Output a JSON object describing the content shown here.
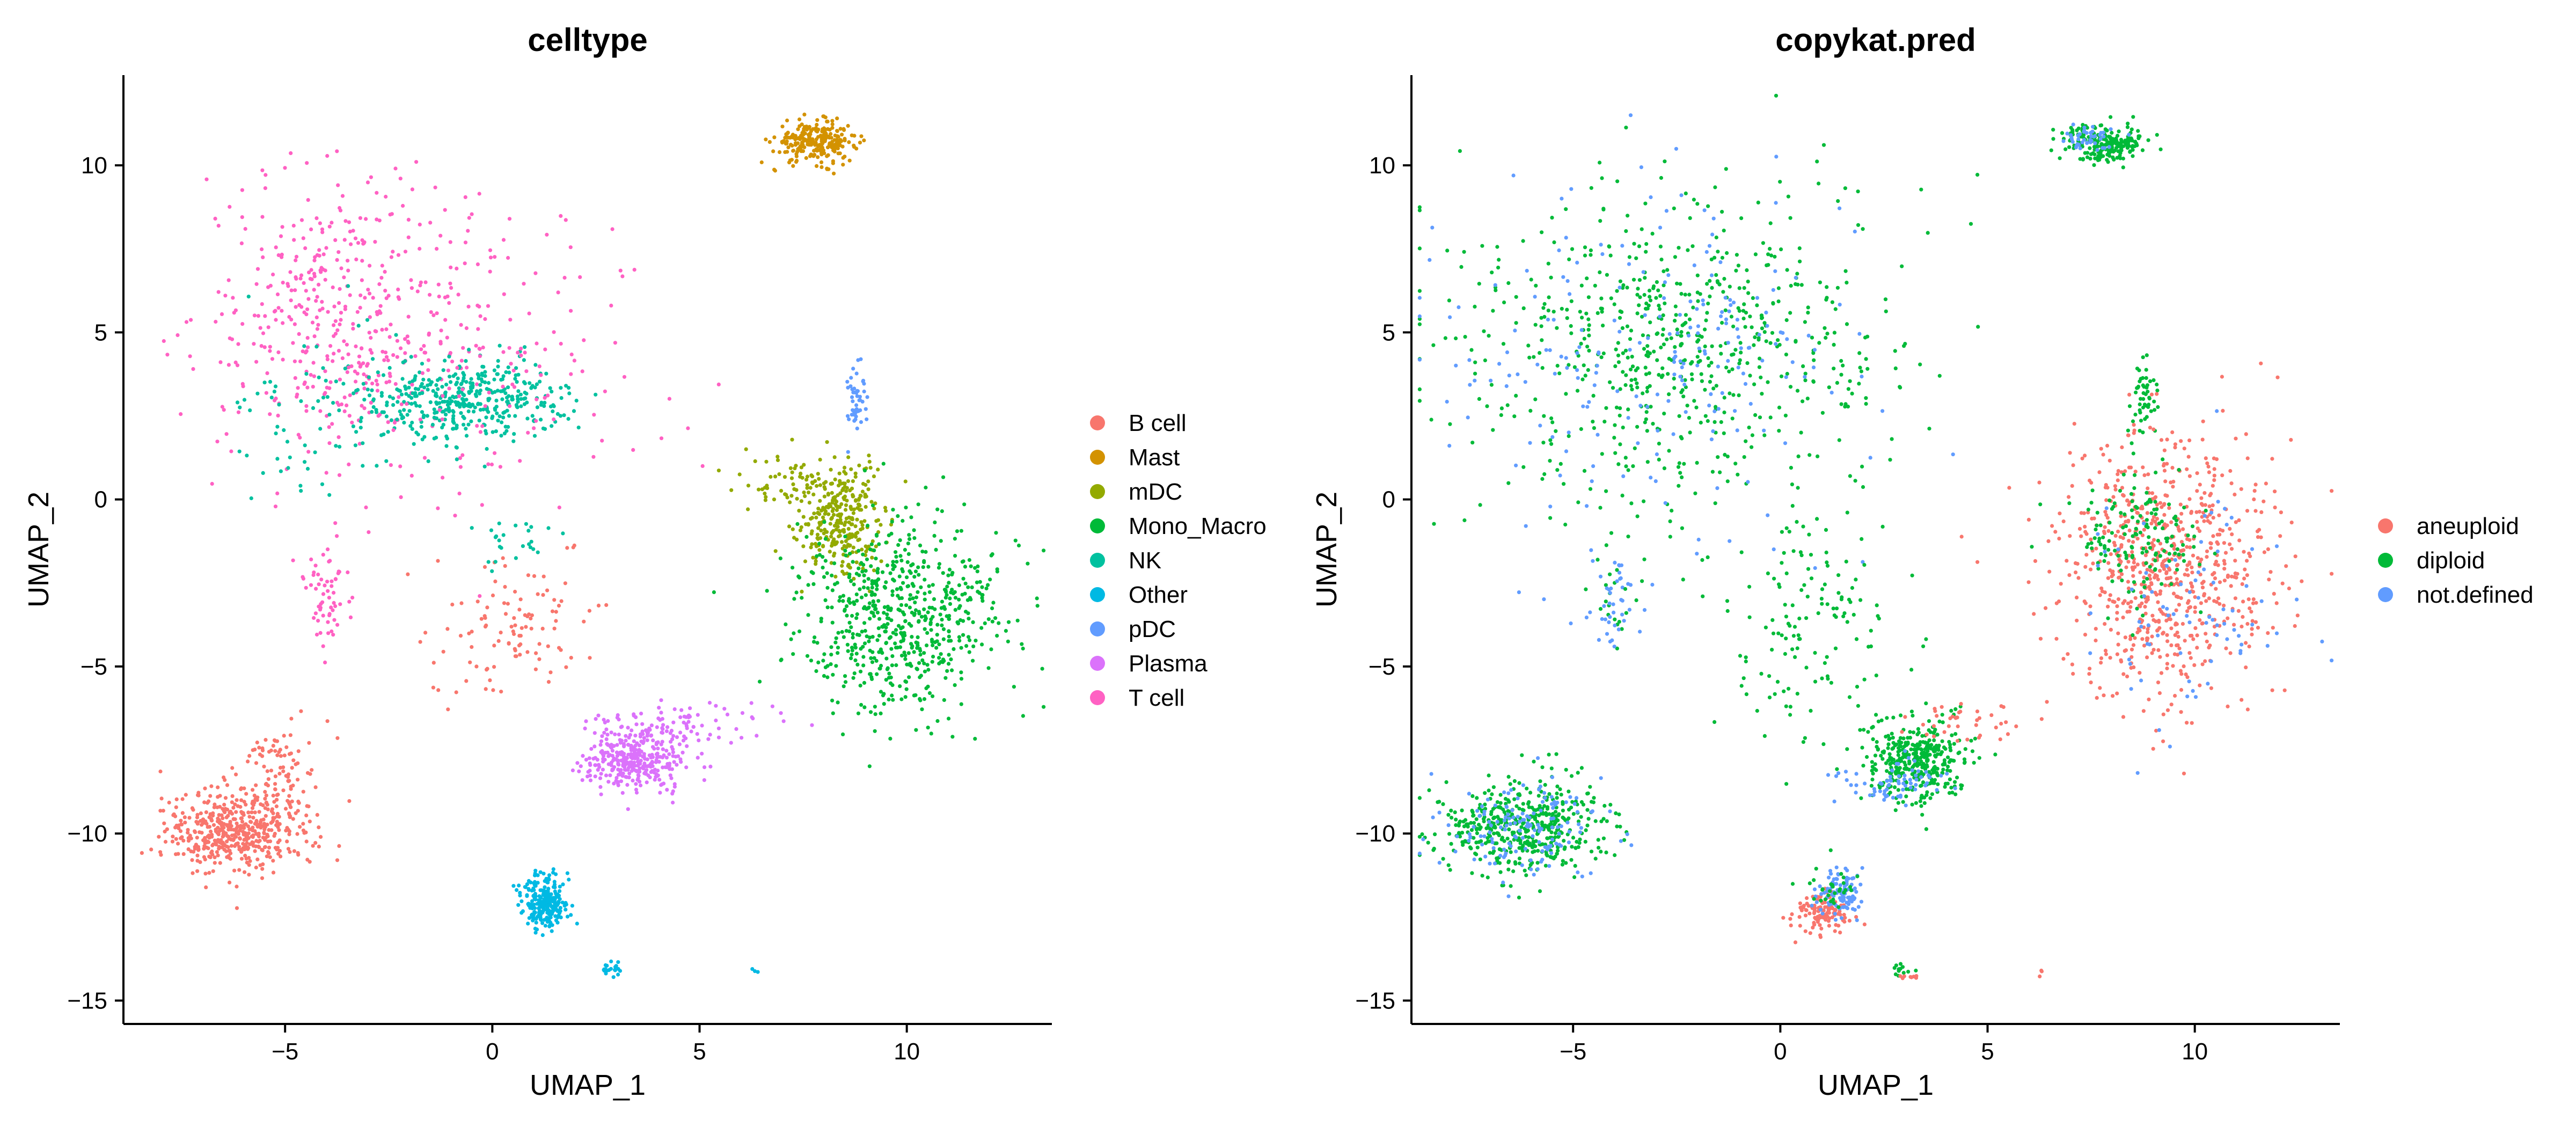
{
  "chart_data": [
    {
      "type": "scatter",
      "title": "celltype",
      "xlabel": "UMAP_1",
      "ylabel": "UMAP_2",
      "xlim": [
        -8.9,
        13.5
      ],
      "ylim": [
        -15.7,
        12.7
      ],
      "xticks": [
        -5,
        0,
        5,
        10
      ],
      "yticks": [
        -15,
        -10,
        -5,
        0,
        5,
        10
      ],
      "xtick_labels": [
        "−5",
        "0",
        "5",
        "10"
      ],
      "ytick_labels": [
        "−15",
        "−10",
        "−5",
        "0",
        "5",
        "10"
      ],
      "grid": false,
      "legend_position": "right",
      "legend": [
        "B cell",
        "Mast",
        "mDC",
        "Mono_Macro",
        "NK",
        "Other",
        "pDC",
        "Plasma",
        "T cell"
      ],
      "colors": {
        "B cell": "#F8766D",
        "Mast": "#D39200",
        "mDC": "#93AA00",
        "Mono_Macro": "#00BA38",
        "NK": "#00C19F",
        "Other": "#00B9E3",
        "pDC": "#619CFF",
        "Plasma": "#DB72FB",
        "T cell": "#FF61C3"
      },
      "clusters": [
        {
          "group": "Mast",
          "center": [
            7.8,
            10.7
          ],
          "spread": [
            0.5,
            0.3
          ],
          "n": 260
        },
        {
          "group": "T cell",
          "center": [
            -3.8,
            5.5
          ],
          "spread": [
            1.6,
            2.2
          ],
          "n": 380
        },
        {
          "group": "NK",
          "center": [
            -0.5,
            3.0
          ],
          "spread": [
            1.2,
            0.6
          ],
          "n": 420
        },
        {
          "group": "T cell",
          "center": [
            -1.0,
            4.5
          ],
          "spread": [
            2.5,
            2.3
          ],
          "n": 200
        },
        {
          "group": "NK",
          "center": [
            -4.0,
            2.8
          ],
          "spread": [
            1.3,
            1.4
          ],
          "n": 70
        },
        {
          "group": "T cell",
          "center": [
            -4.0,
            -3.0
          ],
          "spread": [
            0.3,
            0.7
          ],
          "n": 60
        },
        {
          "group": "pDC",
          "center": [
            8.8,
            3.0
          ],
          "spread": [
            0.15,
            0.6
          ],
          "n": 50
        },
        {
          "group": "mDC",
          "center": [
            8.4,
            -0.6
          ],
          "spread": [
            0.5,
            0.8
          ],
          "n": 300
        },
        {
          "group": "mDC",
          "center": [
            7.0,
            0.5
          ],
          "spread": [
            0.8,
            0.5
          ],
          "n": 60
        },
        {
          "group": "Mono_Macro",
          "center": [
            9.8,
            -3.5
          ],
          "spread": [
            1.2,
            1.4
          ],
          "n": 650
        },
        {
          "group": "Plasma",
          "center": [
            3.5,
            -7.8
          ],
          "spread": [
            0.6,
            0.5
          ],
          "n": 350
        },
        {
          "group": "Plasma",
          "center": [
            4.5,
            -6.7
          ],
          "spread": [
            1.1,
            0.3
          ],
          "n": 80
        },
        {
          "group": "B cell",
          "center": [
            -6.2,
            -9.9
          ],
          "spread": [
            0.9,
            0.6
          ],
          "n": 520
        },
        {
          "group": "B cell",
          "center": [
            -5.0,
            -7.8
          ],
          "spread": [
            0.5,
            0.7
          ],
          "n": 70
        },
        {
          "group": "B cell",
          "center": [
            0.6,
            -4.0
          ],
          "spread": [
            1.0,
            1.1
          ],
          "n": 110
        },
        {
          "group": "NK",
          "center": [
            0.5,
            -1.2
          ],
          "spread": [
            0.6,
            0.3
          ],
          "n": 25
        },
        {
          "group": "Other",
          "center": [
            1.3,
            -12.1
          ],
          "spread": [
            0.3,
            0.4
          ],
          "n": 240
        },
        {
          "group": "Other",
          "center": [
            2.9,
            -14.1
          ],
          "spread": [
            0.2,
            0.1
          ],
          "n": 20
        },
        {
          "group": "Other",
          "center": [
            6.3,
            -14.1
          ],
          "spread": [
            0.05,
            0.05
          ],
          "n": 3
        }
      ]
    },
    {
      "type": "scatter",
      "title": "copykat.pred",
      "xlabel": "UMAP_1",
      "ylabel": "UMAP_2",
      "xlim": [
        -8.9,
        13.5
      ],
      "ylim": [
        -15.7,
        12.7
      ],
      "xticks": [
        -5,
        0,
        5,
        10
      ],
      "yticks": [
        -15,
        -10,
        -5,
        0,
        5,
        10
      ],
      "xtick_labels": [
        "−5",
        "0",
        "5",
        "10"
      ],
      "ytick_labels": [
        "−15",
        "−10",
        "−5",
        "0",
        "5",
        "10"
      ],
      "grid": false,
      "legend_position": "right",
      "legend": [
        "aneuploid",
        "diploid",
        "not.defined"
      ],
      "colors": {
        "aneuploid": "#F8766D",
        "diploid": "#00BA38",
        "not.defined": "#619CFF"
      },
      "clusters": [
        {
          "group": "diploid",
          "center": [
            7.8,
            10.7
          ],
          "spread": [
            0.5,
            0.3
          ],
          "n": 220
        },
        {
          "group": "not.defined",
          "center": [
            7.4,
            10.8
          ],
          "spread": [
            0.3,
            0.2
          ],
          "n": 45
        },
        {
          "group": "diploid",
          "center": [
            -2.5,
            4.5
          ],
          "spread": [
            2.6,
            2.4
          ],
          "n": 700
        },
        {
          "group": "not.defined",
          "center": [
            -3.0,
            4.0
          ],
          "spread": [
            2.5,
            2.5
          ],
          "n": 220
        },
        {
          "group": "diploid",
          "center": [
            -4.0,
            -3.0
          ],
          "spread": [
            0.3,
            0.7
          ],
          "n": 20
        },
        {
          "group": "not.defined",
          "center": [
            -4.0,
            -3.0
          ],
          "spread": [
            0.3,
            0.7
          ],
          "n": 40
        },
        {
          "group": "diploid",
          "center": [
            8.8,
            3.0
          ],
          "spread": [
            0.15,
            0.6
          ],
          "n": 50
        },
        {
          "group": "aneuploid",
          "center": [
            9.2,
            -2.0
          ],
          "spread": [
            1.3,
            2.0
          ],
          "n": 750
        },
        {
          "group": "diploid",
          "center": [
            8.6,
            -1.0
          ],
          "spread": [
            0.7,
            1.0
          ],
          "n": 150
        },
        {
          "group": "not.defined",
          "center": [
            10.0,
            -3.0
          ],
          "spread": [
            1.3,
            1.8
          ],
          "n": 80
        },
        {
          "group": "diploid",
          "center": [
            3.3,
            -7.8
          ],
          "spread": [
            0.6,
            0.6
          ],
          "n": 380
        },
        {
          "group": "not.defined",
          "center": [
            2.8,
            -8.5
          ],
          "spread": [
            0.6,
            0.3
          ],
          "n": 70
        },
        {
          "group": "aneuploid",
          "center": [
            4.6,
            -6.7
          ],
          "spread": [
            0.8,
            0.3
          ],
          "n": 40
        },
        {
          "group": "diploid",
          "center": [
            -6.2,
            -9.8
          ],
          "spread": [
            1.0,
            0.7
          ],
          "n": 480
        },
        {
          "group": "not.defined",
          "center": [
            -6.2,
            -9.8
          ],
          "spread": [
            1.0,
            0.7
          ],
          "n": 150
        },
        {
          "group": "diploid",
          "center": [
            0.5,
            -3.5
          ],
          "spread": [
            1.0,
            1.6
          ],
          "n": 130
        },
        {
          "group": "aneuploid",
          "center": [
            1.0,
            -12.4
          ],
          "spread": [
            0.35,
            0.3
          ],
          "n": 120
        },
        {
          "group": "not.defined",
          "center": [
            1.5,
            -11.8
          ],
          "spread": [
            0.25,
            0.4
          ],
          "n": 100
        },
        {
          "group": "diploid",
          "center": [
            1.2,
            -11.6
          ],
          "spread": [
            0.3,
            0.4
          ],
          "n": 30
        },
        {
          "group": "diploid",
          "center": [
            2.9,
            -14.1
          ],
          "spread": [
            0.15,
            0.1
          ],
          "n": 12
        },
        {
          "group": "aneuploid",
          "center": [
            3.1,
            -14.3
          ],
          "spread": [
            0.1,
            0.05
          ],
          "n": 8
        },
        {
          "group": "aneuploid",
          "center": [
            6.3,
            -14.1
          ],
          "spread": [
            0.05,
            0.05
          ],
          "n": 3
        }
      ]
    }
  ]
}
